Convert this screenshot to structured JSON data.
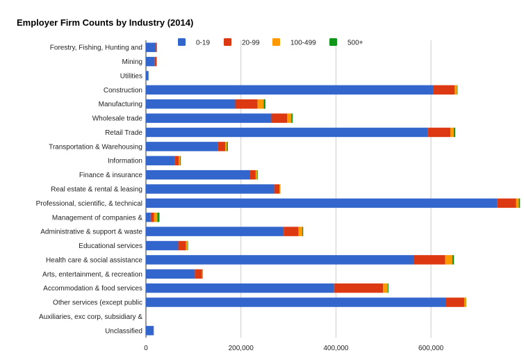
{
  "chart_data": {
    "type": "bar",
    "orientation": "horizontal",
    "stacked": true,
    "title": "Employer Firm Counts by Industry (2014)",
    "xlabel": "",
    "ylabel": "",
    "xlim": [
      0,
      790000
    ],
    "xticks": [
      0,
      200000,
      400000,
      600000
    ],
    "xtick_labels": [
      "0",
      "200,000",
      "400,000",
      "600,000"
    ],
    "grid": true,
    "legend_position": "top",
    "categories": [
      "Forestry, Fishing, Hunting and",
      "Mining",
      "Utilities",
      "Construction",
      "Manufacturing",
      "Wholesale trade",
      "Retail Trade",
      "Transportation & Warehousing",
      "Information",
      "Finance & insurance",
      "Real estate & rental & leasing",
      "Professional, scientific, & technical",
      "Management of companies &",
      "Administrative & support & waste",
      "Educational services",
      "Health care & social assistance",
      "Arts, entertainment, & recreation",
      "Accommodation & food services",
      "Other services (except public",
      "Auxiliaries, exc corp, subsidiary &",
      "Unclassified"
    ],
    "series": [
      {
        "name": "0-19",
        "color": "#3366cc",
        "values": [
          21000,
          18500,
          4500,
          605000,
          188000,
          264000,
          593000,
          152000,
          61000,
          218000,
          270000,
          740000,
          10000,
          290000,
          68000,
          564000,
          103000,
          396000,
          632000,
          500,
          16000
        ]
      },
      {
        "name": "20-99",
        "color": "#dc3912",
        "values": [
          2000,
          3500,
          1000,
          45000,
          47000,
          33000,
          48000,
          15000,
          8000,
          13000,
          11000,
          39000,
          7000,
          31000,
          16000,
          66000,
          15000,
          103000,
          38000,
          200,
          500
        ]
      },
      {
        "name": "100-499",
        "color": "#ff9900",
        "values": [
          300,
          800,
          500,
          5000,
          13000,
          9000,
          7000,
          3500,
          3000,
          3500,
          1500,
          6000,
          7000,
          8000,
          3500,
          15000,
          1500,
          10000,
          4000,
          100,
          100
        ]
      },
      {
        "name": "500+",
        "color": "#109618",
        "values": [
          100,
          300,
          200,
          1000,
          3500,
          3000,
          3000,
          2000,
          1500,
          1000,
          500,
          2500,
          4500,
          2000,
          1000,
          3500,
          500,
          1500,
          500,
          50,
          50
        ]
      }
    ]
  }
}
